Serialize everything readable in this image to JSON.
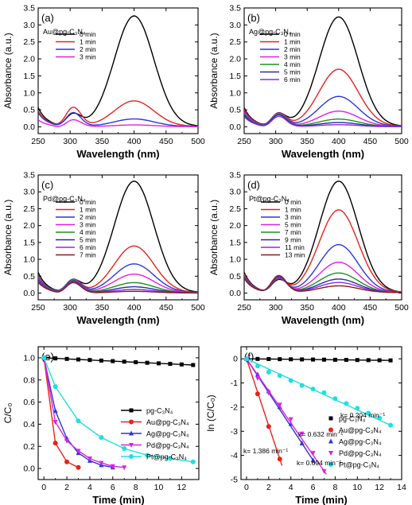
{
  "chart_data": [
    {
      "panel": "(a)",
      "type": "line",
      "sample": "Au@pg-C₃N₄",
      "xlabel": "Wavelength (nm)",
      "ylabel": "Absorbance (a.u.)",
      "xlim": [
        250,
        500
      ],
      "ylim": [
        -0.2,
        3.5
      ],
      "xticks": [
        250,
        300,
        350,
        400,
        450,
        500
      ],
      "yticks": [
        0.0,
        0.5,
        1.0,
        1.5,
        2.0,
        2.5,
        3.0,
        3.5
      ],
      "legend_position": "upper-left",
      "series": [
        {
          "name": "0 min",
          "color": "#000000",
          "peak": 3.25,
          "base": 0.05,
          "nitro": 0.35,
          "start": 0.55
        },
        {
          "name": "1 min",
          "color": "#e8221c",
          "peak": 0.75,
          "base": 0.05,
          "nitro": 0.55,
          "start": 0.45
        },
        {
          "name": "2 min",
          "color": "#2b37d6",
          "peak": 0.22,
          "base": 0.04,
          "nitro": 0.4,
          "start": 0.4
        },
        {
          "name": "3 min",
          "color": "#e020e0",
          "peak": 0.05,
          "base": 0.02,
          "nitro": 0.2,
          "start": 0.2
        }
      ]
    },
    {
      "panel": "(b)",
      "type": "line",
      "sample": "Ag@pg-C₃N₄",
      "xlabel": "Wavelength (nm)",
      "ylabel": "Absorbance (a.u.)",
      "xlim": [
        250,
        500
      ],
      "ylim": [
        -0.2,
        3.5
      ],
      "xticks": [
        250,
        300,
        350,
        400,
        450,
        500
      ],
      "yticks": [
        0.0,
        0.5,
        1.0,
        1.5,
        2.0,
        2.5,
        3.0,
        3.5
      ],
      "legend_position": "upper-left",
      "series": [
        {
          "name": "0 min",
          "color": "#000000",
          "peak": 3.22,
          "base": 0.05,
          "nitro": 0.35,
          "start": 0.55
        },
        {
          "name": "1 min",
          "color": "#e8221c",
          "peak": 1.68,
          "base": 0.05,
          "nitro": 0.38,
          "start": 0.5
        },
        {
          "name": "2 min",
          "color": "#2b37d6",
          "peak": 0.88,
          "base": 0.05,
          "nitro": 0.38,
          "start": 0.45
        },
        {
          "name": "3 min",
          "color": "#e020e0",
          "peak": 0.45,
          "base": 0.04,
          "nitro": 0.37,
          "start": 0.42
        },
        {
          "name": "4 min",
          "color": "#1f8f1f",
          "peak": 0.22,
          "base": 0.03,
          "nitro": 0.36,
          "start": 0.38
        },
        {
          "name": "5 min",
          "color": "#2a2aa0",
          "peak": 0.12,
          "base": 0.02,
          "nitro": 0.34,
          "start": 0.34
        },
        {
          "name": "6 min",
          "color": "#8a2be2",
          "peak": 0.06,
          "base": 0.01,
          "nitro": 0.3,
          "start": 0.3
        }
      ]
    },
    {
      "panel": "(c)",
      "type": "line",
      "sample": "Pd@pg-C₃N₄",
      "xlabel": "Wavelength (nm)",
      "ylabel": "Absorbance (a.u.)",
      "xlim": [
        250,
        500
      ],
      "ylim": [
        -0.2,
        3.5
      ],
      "xticks": [
        250,
        300,
        350,
        400,
        450,
        500
      ],
      "yticks": [
        0.0,
        0.5,
        1.0,
        1.5,
        2.0,
        2.5,
        3.0,
        3.5
      ],
      "legend_position": "upper-left",
      "series": [
        {
          "name": "0 min",
          "color": "#000000",
          "peak": 3.3,
          "base": 0.05,
          "nitro": 0.35,
          "start": 0.6
        },
        {
          "name": "1 min",
          "color": "#e8221c",
          "peak": 1.38,
          "base": 0.05,
          "nitro": 0.38,
          "start": 0.5
        },
        {
          "name": "2 min",
          "color": "#2b37d6",
          "peak": 0.85,
          "base": 0.05,
          "nitro": 0.38,
          "start": 0.48
        },
        {
          "name": "3 min",
          "color": "#e020e0",
          "peak": 0.55,
          "base": 0.04,
          "nitro": 0.37,
          "start": 0.45
        },
        {
          "name": "4 min",
          "color": "#1f8f1f",
          "peak": 0.3,
          "base": 0.03,
          "nitro": 0.36,
          "start": 0.42
        },
        {
          "name": "5 min",
          "color": "#2a2aa0",
          "peak": 0.18,
          "base": 0.02,
          "nitro": 0.34,
          "start": 0.38
        },
        {
          "name": "6 min",
          "color": "#8a2be2",
          "peak": 0.1,
          "base": 0.02,
          "nitro": 0.32,
          "start": 0.35
        },
        {
          "name": "7 min",
          "color": "#8b1a1a",
          "peak": 0.05,
          "base": 0.01,
          "nitro": 0.3,
          "start": 0.32
        }
      ]
    },
    {
      "panel": "(d)",
      "type": "line",
      "sample": "Pt@pg-C₃N₄",
      "xlabel": "Wavelength (nm)",
      "ylabel": "Absorbance (a.u.)",
      "xlim": [
        250,
        500
      ],
      "ylim": [
        -0.2,
        3.5
      ],
      "xticks": [
        250,
        300,
        350,
        400,
        450,
        500
      ],
      "yticks": [
        0.0,
        0.5,
        1.0,
        1.5,
        2.0,
        2.5,
        3.0,
        3.5
      ],
      "legend_position": "upper-left",
      "series": [
        {
          "name": "0 min",
          "color": "#000000",
          "peak": 3.3,
          "base": 0.05,
          "nitro": 0.35,
          "start": 0.6
        },
        {
          "name": "1 min",
          "color": "#e8221c",
          "peak": 2.45,
          "base": 0.05,
          "nitro": 0.38,
          "start": 0.55
        },
        {
          "name": "3 min",
          "color": "#2b37d6",
          "peak": 1.42,
          "base": 0.05,
          "nitro": 0.4,
          "start": 0.52
        },
        {
          "name": "5 min",
          "color": "#e020e0",
          "peak": 0.9,
          "base": 0.05,
          "nitro": 0.42,
          "start": 0.5
        },
        {
          "name": "7 min",
          "color": "#1f8f1f",
          "peak": 0.58,
          "base": 0.05,
          "nitro": 0.44,
          "start": 0.48
        },
        {
          "name": "9 min",
          "color": "#2a2aa0",
          "peak": 0.4,
          "base": 0.05,
          "nitro": 0.46,
          "start": 0.46
        },
        {
          "name": "11 min",
          "color": "#8a2be2",
          "peak": 0.3,
          "base": 0.05,
          "nitro": 0.48,
          "start": 0.44
        },
        {
          "name": "13 min",
          "color": "#8b1a1a",
          "peak": 0.2,
          "base": 0.05,
          "nitro": 0.5,
          "start": 0.42
        }
      ]
    },
    {
      "panel": "(e)",
      "type": "line",
      "xlabel": "Time (min)",
      "ylabel": "C/C₀",
      "xlim": [
        -0.5,
        13.5
      ],
      "ylim": [
        -0.1,
        1.1
      ],
      "xticks": [
        0,
        2,
        4,
        6,
        8,
        10,
        12
      ],
      "yticks": [
        0.0,
        0.2,
        0.4,
        0.6,
        0.8,
        1.0
      ],
      "legend_position": "right",
      "series": [
        {
          "name": "pg-C₃N₄",
          "color": "#000000",
          "marker": "square",
          "x": [
            0,
            1,
            2,
            3,
            4,
            5,
            6,
            7,
            8,
            9,
            10,
            11,
            12,
            13
          ],
          "y": [
            1.0,
            0.995,
            0.99,
            0.985,
            0.98,
            0.975,
            0.97,
            0.965,
            0.96,
            0.955,
            0.95,
            0.945,
            0.94,
            0.935
          ]
        },
        {
          "name": "Au@pg-C₃N₄",
          "color": "#e8221c",
          "marker": "circle",
          "x": [
            0,
            1,
            2,
            3
          ],
          "y": [
            1.0,
            0.23,
            0.06,
            0.01
          ]
        },
        {
          "name": "Ag@pg-C₃N₄",
          "color": "#2b37d6",
          "marker": "triangle-up",
          "x": [
            0,
            1,
            2,
            3,
            4,
            5,
            6
          ],
          "y": [
            1.0,
            0.52,
            0.27,
            0.14,
            0.07,
            0.03,
            0.01
          ]
        },
        {
          "name": "Pd@pg-C₃N₄",
          "color": "#e020e0",
          "marker": "triangle-down",
          "x": [
            0,
            1,
            2,
            3,
            4,
            5,
            6,
            7
          ],
          "y": [
            1.0,
            0.42,
            0.25,
            0.16,
            0.09,
            0.05,
            0.02,
            0.01
          ]
        },
        {
          "name": "Pt@pg-C₃N₄",
          "color": "#1ee0e0",
          "marker": "circle",
          "x": [
            0,
            1,
            3,
            5,
            7,
            9,
            11,
            13
          ],
          "y": [
            1.0,
            0.74,
            0.43,
            0.28,
            0.18,
            0.12,
            0.09,
            0.06
          ]
        }
      ]
    },
    {
      "panel": "(f)",
      "type": "line",
      "xlabel": "Time (min)",
      "ylabel": "ln (C/C₀)",
      "xlim": [
        -0.5,
        14
      ],
      "ylim": [
        -5.0,
        0.5
      ],
      "xticks": [
        0,
        2,
        4,
        6,
        8,
        10,
        12,
        14
      ],
      "yticks": [
        0,
        -1,
        -2,
        -3,
        -4,
        -5
      ],
      "legend_position": "lower-right",
      "annotations": [
        "k= 0.204 min⁻¹",
        "k= 0.632 min⁻¹",
        "k= 1.386 min⁻¹",
        "k= 0.694 min⁻¹"
      ],
      "series": [
        {
          "name": "pg-C₃N₄",
          "color": "#000000",
          "marker": "square",
          "x": [
            0,
            1,
            2,
            3,
            4,
            5,
            6,
            7,
            8,
            9,
            10,
            11,
            12,
            13
          ],
          "y": [
            0,
            -0.005,
            -0.01,
            -0.015,
            -0.02,
            -0.025,
            -0.03,
            -0.035,
            -0.04,
            -0.045,
            -0.05,
            -0.055,
            -0.06,
            -0.065
          ]
        },
        {
          "name": "Au@pg-C₃N₄",
          "color": "#e8221c",
          "marker": "circle",
          "x": [
            0,
            1,
            2,
            3
          ],
          "y": [
            0,
            -1.45,
            -2.8,
            -4.15
          ],
          "k": 1.386
        },
        {
          "name": "Ag@pg-C₃N₄",
          "color": "#2b37d6",
          "marker": "triangle-up",
          "x": [
            0,
            1,
            2,
            3,
            4,
            5,
            6
          ],
          "y": [
            0,
            -0.65,
            -1.35,
            -2.0,
            -2.7,
            -3.5,
            -4.2
          ],
          "k": 0.694
        },
        {
          "name": "Pd@pg-C₃N₄",
          "color": "#e020e0",
          "marker": "triangle-down",
          "x": [
            0,
            1,
            2,
            3,
            4,
            5,
            6,
            7
          ],
          "y": [
            0,
            -0.8,
            -1.4,
            -1.9,
            -2.5,
            -3.1,
            -3.9,
            -4.65
          ],
          "k": 0.632
        },
        {
          "name": "Pt@pg-C₃N₄",
          "color": "#1ee0e0",
          "marker": "circle",
          "x": [
            0,
            1,
            2,
            3,
            4,
            5,
            6,
            7,
            8,
            9,
            10,
            11,
            12,
            13
          ],
          "y": [
            0,
            -0.3,
            -0.55,
            -0.7,
            -0.9,
            -1.1,
            -1.25,
            -1.4,
            -1.65,
            -1.85,
            -2.05,
            -2.25,
            -2.45,
            -2.75
          ],
          "k": 0.204
        }
      ]
    }
  ]
}
